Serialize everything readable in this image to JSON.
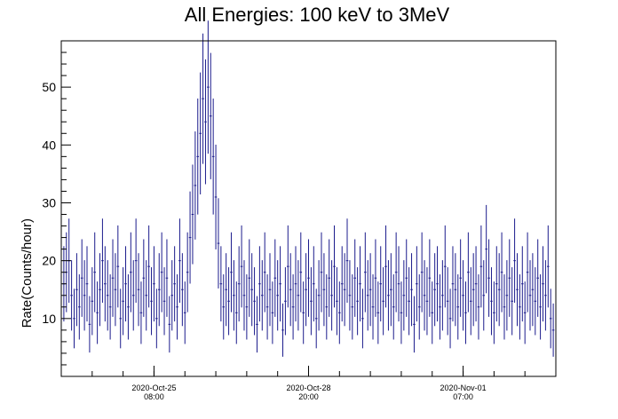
{
  "chart_data": {
    "type": "scatter",
    "title": "All Energies:  100 keV to 3MeV",
    "xlabel": "",
    "ylabel": "Rate(Counts/hour)",
    "xlim": [
      0,
      192
    ],
    "ylim": [
      0,
      58
    ],
    "y_ticks": [
      10,
      20,
      30,
      40,
      50
    ],
    "x_ticks": [
      {
        "x": 36,
        "date": "2020-Oct-25",
        "time": "08:00"
      },
      {
        "x": 96,
        "date": "2020-Oct-28",
        "time": "20:00"
      },
      {
        "x": 156,
        "date": "2020-Nov-01",
        "time": "07:00"
      }
    ],
    "grid": false,
    "legend": "none",
    "series": [
      {
        "color": "#1b1b8c",
        "x": [
          1,
          2,
          3,
          4,
          5,
          6,
          7,
          8,
          9,
          10,
          11,
          12,
          13,
          14,
          15,
          16,
          17,
          18,
          19,
          20,
          21,
          22,
          23,
          24,
          25,
          26,
          27,
          28,
          29,
          30,
          31,
          32,
          33,
          34,
          35,
          36,
          37,
          38,
          39,
          40,
          41,
          42,
          43,
          44,
          45,
          46,
          47,
          48,
          49,
          50,
          51,
          52,
          53,
          54,
          55,
          56,
          57,
          58,
          59,
          60,
          61,
          62,
          63,
          64,
          65,
          66,
          67,
          68,
          69,
          70,
          71,
          72,
          73,
          74,
          75,
          76,
          77,
          78,
          79,
          80,
          81,
          82,
          83,
          84,
          85,
          86,
          87,
          88,
          89,
          90,
          91,
          92,
          93,
          94,
          95,
          96,
          97,
          98,
          99,
          100,
          101,
          102,
          103,
          104,
          105,
          106,
          107,
          108,
          109,
          110,
          111,
          112,
          113,
          114,
          115,
          116,
          117,
          118,
          119,
          120,
          121,
          122,
          123,
          124,
          125,
          126,
          127,
          128,
          129,
          130,
          131,
          132,
          133,
          134,
          135,
          136,
          137,
          138,
          139,
          140,
          141,
          142,
          143,
          144,
          145,
          146,
          147,
          148,
          149,
          150,
          151,
          152,
          153,
          154,
          155,
          156,
          157,
          158,
          159,
          160,
          161,
          162,
          163,
          164,
          165,
          166,
          167,
          168,
          169,
          170,
          171,
          172,
          173,
          174,
          175,
          176,
          177,
          178,
          179,
          180,
          181,
          182,
          183,
          184,
          185,
          186,
          187,
          188,
          189,
          190,
          191
        ],
        "values": [
          16,
          18,
          20,
          14,
          10,
          15,
          12,
          17,
          14,
          16,
          9,
          13,
          18,
          11,
          15,
          20,
          16,
          14,
          12,
          17,
          15,
          19,
          10,
          13,
          16,
          12,
          18,
          14,
          20,
          15,
          11,
          17,
          14,
          19,
          13,
          16,
          10,
          15,
          18,
          13,
          17,
          9,
          14,
          16,
          12,
          20,
          15,
          11,
          18,
          24,
          28,
          33,
          38,
          42,
          48,
          44,
          50,
          45,
          38,
          31,
          23,
          16,
          12,
          15,
          13,
          18,
          14,
          11,
          16,
          19,
          14,
          12,
          17,
          15,
          13,
          9,
          16,
          14,
          18,
          12,
          15,
          11,
          17,
          14,
          16,
          8,
          13,
          19,
          15,
          12,
          16,
          14,
          18,
          11,
          15,
          17,
          13,
          16,
          10,
          14,
          18,
          15,
          12,
          17,
          14,
          19,
          13,
          11,
          16,
          15,
          20,
          14,
          12,
          17,
          13,
          16,
          10,
          18,
          14,
          15,
          12,
          17,
          11,
          16,
          13,
          19,
          14,
          15,
          12,
          18,
          16,
          11,
          14,
          17,
          13,
          15,
          9,
          16,
          12,
          18,
          14,
          13,
          17,
          11,
          15,
          16,
          12,
          14,
          19,
          13,
          10,
          16,
          15,
          12,
          17,
          14,
          11,
          18,
          13,
          15,
          16,
          12,
          19,
          14,
          22,
          17,
          13,
          11,
          16,
          15,
          18,
          12,
          14,
          17,
          13,
          20,
          15,
          12,
          16,
          11,
          18,
          14,
          15,
          13,
          17,
          12,
          16,
          14,
          19,
          10,
          8
        ]
      }
    ]
  }
}
